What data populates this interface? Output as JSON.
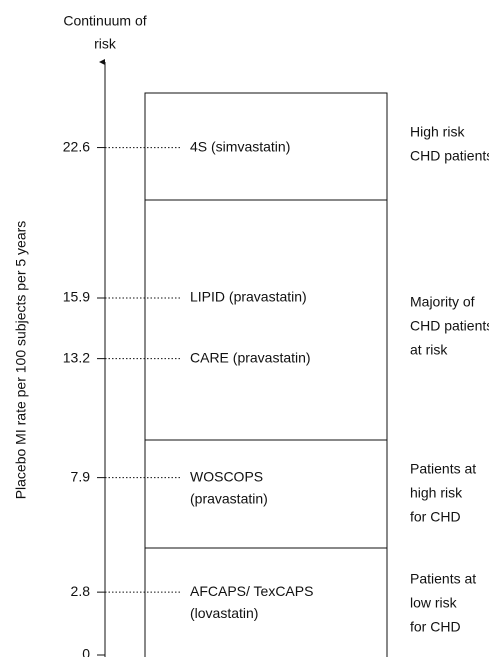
{
  "chart_data": {
    "type": "scale",
    "title": [
      "Continuum of",
      "risk"
    ],
    "y_label": "Placebo MI rate per 100 subjects per 5 years",
    "ylim": [
      0,
      26.5
    ],
    "yticks": [
      0,
      2.8,
      7.9,
      13.2,
      15.9,
      22.6
    ],
    "studies": [
      {
        "label": [
          "AFCAPS/ TexCAPS",
          "(lovastatin)"
        ],
        "value": 2.8
      },
      {
        "label": [
          "WOSCOPS",
          "(pravastatin)"
        ],
        "value": 7.9
      },
      {
        "label": [
          "CARE (pravastatin)"
        ],
        "value": 13.2
      },
      {
        "label": [
          "LIPID (pravastatin)"
        ],
        "value": 15.9
      },
      {
        "label": [
          "4S (simvastatin)"
        ],
        "value": 22.6
      }
    ],
    "groups": [
      {
        "label": [
          "Patients at",
          "low risk",
          "for CHD"
        ]
      },
      {
        "label": [
          "Patients at",
          "high risk",
          "for CHD"
        ]
      },
      {
        "label": [
          "Majority of",
          "CHD patients",
          "at risk"
        ]
      },
      {
        "label": [
          "High risk",
          "CHD patients"
        ]
      }
    ]
  }
}
